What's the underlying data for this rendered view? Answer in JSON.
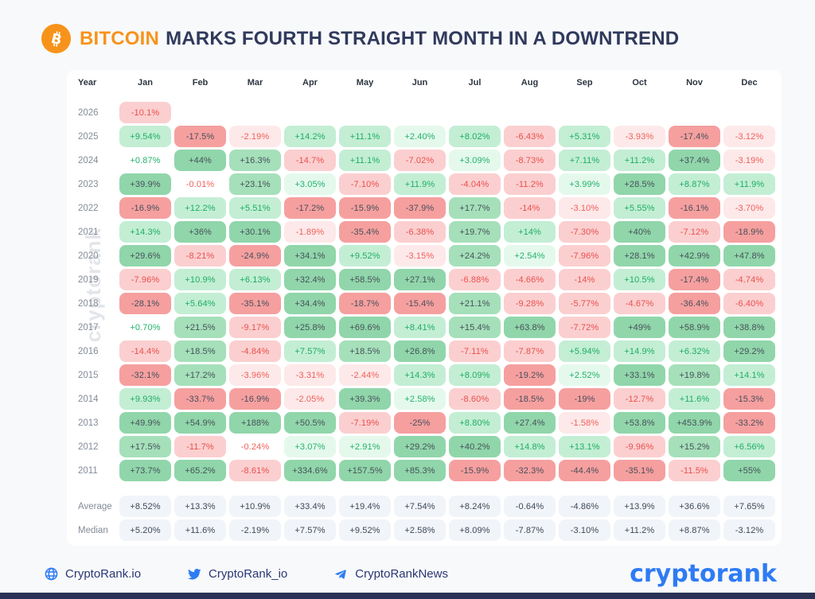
{
  "title": {
    "bitcoin": "BITCOIN",
    "rest": "MARKS FOURTH STRAIGHT MONTH IN A DOWNTREND"
  },
  "watermark": "cryptorank",
  "chart_data": {
    "type": "heatmap",
    "title": "Bitcoin monthly returns by year (%)",
    "columns": [
      "Year",
      "Jan",
      "Feb",
      "Mar",
      "Apr",
      "May",
      "Jun",
      "Jul",
      "Aug",
      "Sep",
      "Oct",
      "Nov",
      "Dec"
    ],
    "rows": [
      {
        "year": "2026",
        "values": [
          "-10.1%",
          "",
          "",
          "",
          "",
          "",
          "",
          "",
          "",
          "",
          "",
          ""
        ]
      },
      {
        "year": "2025",
        "values": [
          "+9.54%",
          "-17.5%",
          "-2.19%",
          "+14.2%",
          "+11.1%",
          "+2.40%",
          "+8.02%",
          "-6.43%",
          "+5.31%",
          "-3.93%",
          "-17.4%",
          "-3.12%"
        ]
      },
      {
        "year": "2024",
        "values": [
          "+0.87%",
          "+44%",
          "+16.3%",
          "-14.7%",
          "+11.1%",
          "-7.02%",
          "+3.09%",
          "-8.73%",
          "+7.11%",
          "+11.2%",
          "+37.4%",
          "-3.19%"
        ]
      },
      {
        "year": "2023",
        "values": [
          "+39.9%",
          "-0.01%",
          "+23.1%",
          "+3.05%",
          "-7.10%",
          "+11.9%",
          "-4.04%",
          "-11.2%",
          "+3.99%",
          "+28.5%",
          "+8.87%",
          "+11.9%"
        ]
      },
      {
        "year": "2022",
        "values": [
          "-16.9%",
          "+12.2%",
          "+5.51%",
          "-17.2%",
          "-15.9%",
          "-37.9%",
          "+17.7%",
          "-14%",
          "-3.10%",
          "+5.55%",
          "-16.1%",
          "-3.70%"
        ]
      },
      {
        "year": "2021",
        "values": [
          "+14.3%",
          "+36%",
          "+30.1%",
          "-1.89%",
          "-35.4%",
          "-6.38%",
          "+19.7%",
          "+14%",
          "-7.30%",
          "+40%",
          "-7.12%",
          "-18.9%"
        ]
      },
      {
        "year": "2020",
        "values": [
          "+29.6%",
          "-8.21%",
          "-24.9%",
          "+34.1%",
          "+9.52%",
          "-3.15%",
          "+24.2%",
          "+2.54%",
          "-7.96%",
          "+28.1%",
          "+42.9%",
          "+47.8%"
        ]
      },
      {
        "year": "2019",
        "values": [
          "-7.96%",
          "+10.9%",
          "+6.13%",
          "+32.4%",
          "+58.5%",
          "+27.1%",
          "-6.88%",
          "-4.66%",
          "-14%",
          "+10.5%",
          "-17.4%",
          "-4.74%"
        ]
      },
      {
        "year": "2018",
        "values": [
          "-28.1%",
          "+5.64%",
          "-35.1%",
          "+34.4%",
          "-18.7%",
          "-15.4%",
          "+21.1%",
          "-9.28%",
          "-5.77%",
          "-4.67%",
          "-36.4%",
          "-6.40%"
        ]
      },
      {
        "year": "2017",
        "values": [
          "+0.70%",
          "+21.5%",
          "-9.17%",
          "+25.8%",
          "+69.6%",
          "+8.41%",
          "+15.4%",
          "+63.8%",
          "-7.72%",
          "+49%",
          "+58.9%",
          "+38.8%"
        ]
      },
      {
        "year": "2016",
        "values": [
          "-14.4%",
          "+18.5%",
          "-4.84%",
          "+7.57%",
          "+18.5%",
          "+26.8%",
          "-7.11%",
          "-7.87%",
          "+5.94%",
          "+14.9%",
          "+6.32%",
          "+29.2%"
        ]
      },
      {
        "year": "2015",
        "values": [
          "-32.1%",
          "+17.2%",
          "-3.96%",
          "-3.31%",
          "-2.44%",
          "+14.3%",
          "+8.09%",
          "-19.2%",
          "+2.52%",
          "+33.1%",
          "+19.8%",
          "+14.1%"
        ]
      },
      {
        "year": "2014",
        "values": [
          "+9.93%",
          "-33.7%",
          "-16.9%",
          "-2.05%",
          "+39.3%",
          "+2.58%",
          "-8.60%",
          "-18.5%",
          "-19%",
          "-12.7%",
          "+11.6%",
          "-15.3%"
        ]
      },
      {
        "year": "2013",
        "values": [
          "+49.9%",
          "+54.9%",
          "+188%",
          "+50.5%",
          "-7.19%",
          "-25%",
          "+8.80%",
          "+27.4%",
          "-1.58%",
          "+53.8%",
          "+453.9%",
          "-33.2%"
        ]
      },
      {
        "year": "2012",
        "values": [
          "+17.5%",
          "-11.7%",
          "-0.24%",
          "+3.07%",
          "+2.91%",
          "+29.2%",
          "+40.2%",
          "+14.8%",
          "+13.1%",
          "-9.96%",
          "+15.2%",
          "+6.56%"
        ]
      },
      {
        "year": "2011",
        "values": [
          "+73.7%",
          "+65.2%",
          "-8.61%",
          "+334.6%",
          "+157.5%",
          "+85.3%",
          "-15.9%",
          "-32.3%",
          "-44.4%",
          "-35.1%",
          "-11.5%",
          "+55%"
        ]
      }
    ],
    "summary_rows": [
      {
        "label": "Average",
        "values": [
          "+8.52%",
          "+13.3%",
          "+10.9%",
          "+33.4%",
          "+19.4%",
          "+7.54%",
          "+8.24%",
          "-0.64%",
          "-4.86%",
          "+13.9%",
          "+36.6%",
          "+7.65%"
        ]
      },
      {
        "label": "Median",
        "values": [
          "+5.20%",
          "+11.6%",
          "-2.19%",
          "+7.57%",
          "+9.52%",
          "+2.58%",
          "+8.09%",
          "-7.87%",
          "-3.10%",
          "+11.2%",
          "+8.87%",
          "-3.12%"
        ]
      }
    ],
    "legend": "green = positive monthly return, red = negative monthly return; color intensity scales with magnitude"
  },
  "footer": {
    "website": "CryptoRank.io",
    "twitter": "CryptoRank_io",
    "telegram": "CryptoRankNews",
    "logo": "cryptorank"
  },
  "colors": {
    "bitcoin-orange": "#F7931A",
    "title-navy": "#303A5C",
    "logo-blue": "#2E7BF4",
    "footer-text": "#2B3674",
    "header-text": "#2C3540",
    "year-text": "#848C98",
    "pos-text": "#23B26B",
    "pos-text-deep": "#1EAD62",
    "pos-bg-light": "#E4F9EC",
    "pos-bg": "#C3EED4",
    "pos-bg-med": "#A5E0BA",
    "pos-bg-strong": "#90D6AA",
    "neg-text": "#F15F5A",
    "neg-text-deep": "#EA4F4F",
    "neg-bg-light": "#FDE9E9",
    "neg-bg": "#FBCFCF",
    "neg-bg-strong": "#F69F9F",
    "dark-cell-text": "#47505A",
    "summary-bg": "#F1F4F9",
    "summary-text": "#3E4856",
    "watermark": "#E2E5E9",
    "bottom-bar": "#2A3356",
    "page-bg": "#F8F9FB",
    "card-bg": "#FFFFFF"
  }
}
